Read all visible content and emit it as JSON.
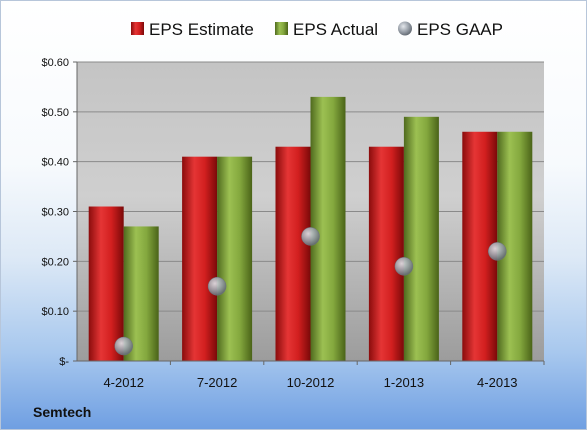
{
  "company": "Semtech",
  "chart_data": {
    "type": "bar",
    "categories": [
      "4-2012",
      "7-2012",
      "10-2012",
      "1-2013",
      "4-2013"
    ],
    "series": [
      {
        "name": "EPS Estimate",
        "type": "bar",
        "color": "#cc1f1f",
        "values": [
          0.31,
          0.41,
          0.43,
          0.43,
          0.46
        ]
      },
      {
        "name": "EPS Actual",
        "type": "bar",
        "color": "#7fa23a",
        "values": [
          0.27,
          0.41,
          0.53,
          0.49,
          0.46
        ]
      },
      {
        "name": "EPS GAAP",
        "type": "scatter",
        "color": "#9aa2ac",
        "values": [
          0.03,
          0.15,
          0.25,
          0.19,
          0.22
        ]
      }
    ],
    "ylim": [
      0,
      0.6
    ],
    "yticks": [
      0,
      0.1,
      0.2,
      0.3,
      0.4,
      0.5,
      0.6
    ],
    "ytick_labels": [
      "$-",
      "$0.10",
      "$0.20",
      "$0.30",
      "$0.40",
      "$0.50",
      "$0.60"
    ],
    "grid": true,
    "legend": "top"
  }
}
